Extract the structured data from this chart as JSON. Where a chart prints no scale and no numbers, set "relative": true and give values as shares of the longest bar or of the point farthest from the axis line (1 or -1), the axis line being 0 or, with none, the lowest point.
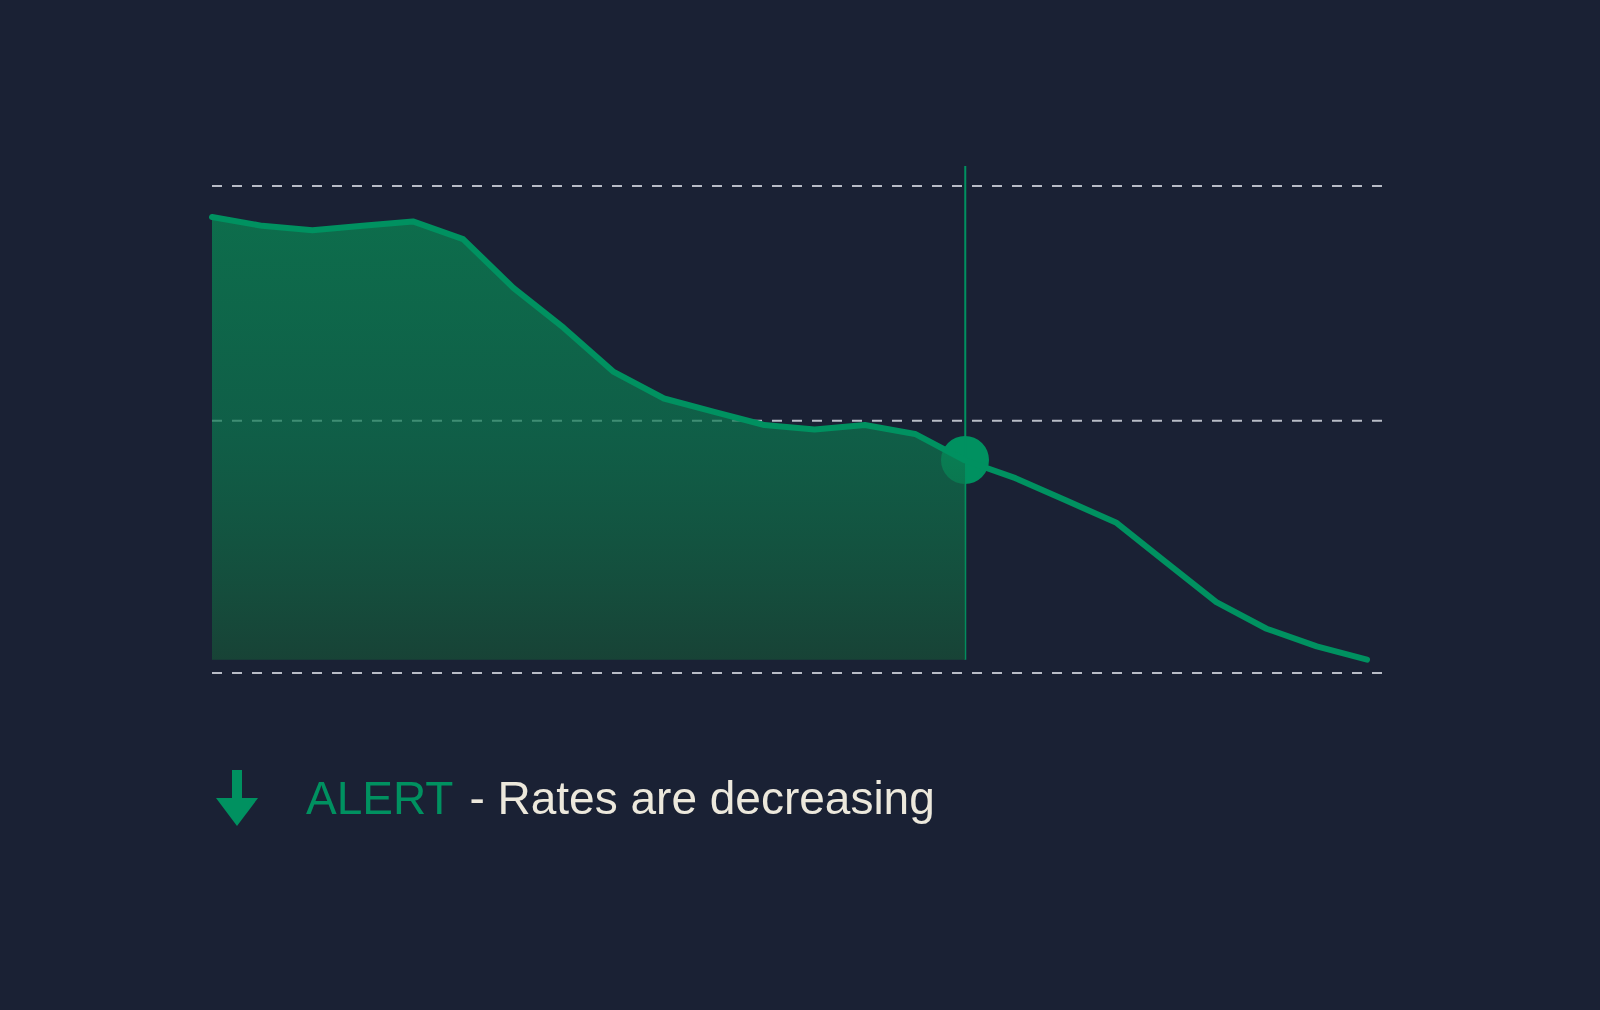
{
  "chart_data": {
    "type": "line",
    "relative": true,
    "line_style": "solid",
    "categories": [
      null,
      null,
      null,
      null,
      null,
      null,
      null,
      null,
      null,
      null,
      null,
      null,
      null,
      null,
      null,
      null,
      null,
      null,
      null,
      null,
      null,
      null,
      null,
      null
    ],
    "series": [
      {
        "color": "#009160",
        "values": [
          1,
          0.98,
          0.97,
          0.98,
          0.99,
          0.95,
          0.84,
          0.75,
          0.65,
          0.59,
          0.56,
          0.53,
          0.52,
          0.53,
          0.51,
          0.45,
          0.41,
          0.36,
          0.31,
          0.22,
          0.13,
          0.07,
          0.03,
          0
        ]
      },
      {
        "type": "area",
        "color": "#0b7a50",
        "values": [
          1,
          0.98,
          0.97,
          0.98,
          0.99,
          0.95,
          0.84,
          0.75,
          0.65,
          0.59,
          0.56,
          0.53,
          0.52,
          0.53,
          0.51,
          0.45,
          null,
          null,
          null,
          null,
          null,
          null,
          null,
          null
        ]
      }
    ],
    "ref_lines": [
      {
        "axis": "y",
        "value": 1.07,
        "color": "#b8bcc6",
        "line_style": "dashed"
      },
      {
        "axis": "y",
        "value": 0.54,
        "color": "#b8bcc6",
        "line_style": "dashed"
      },
      {
        "axis": "y",
        "value": -0.03,
        "color": "#b8bcc6",
        "line_style": "dashed"
      }
    ],
    "annotations": [
      "ALERT",
      "- Rates are decreasing"
    ]
  }
}
